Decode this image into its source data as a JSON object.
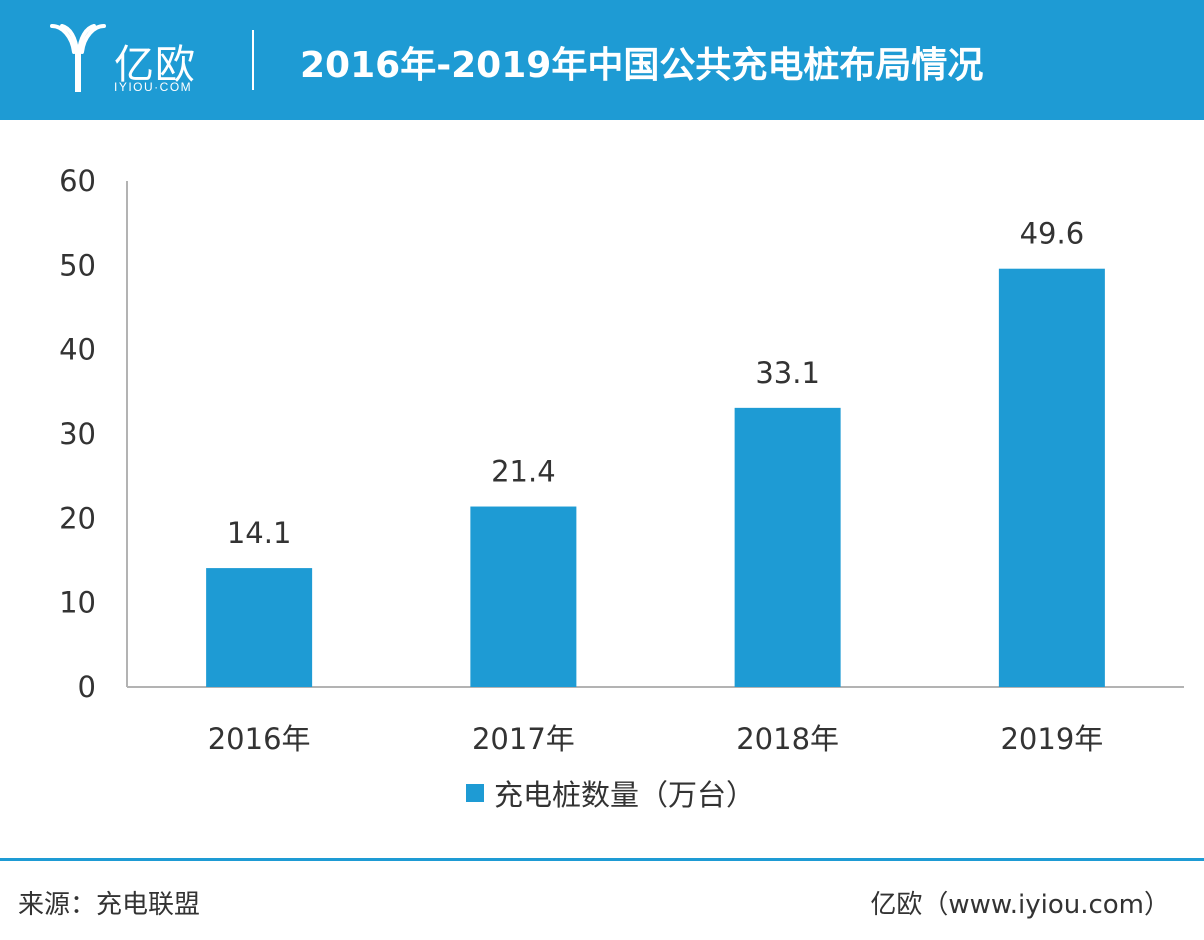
{
  "header": {
    "logo_cn": "亿欧",
    "logo_en": "IYIOU·COM",
    "title": "2016年-2019年中国公共充电桩布局情况"
  },
  "colors": {
    "accent": "#1e9bd4",
    "axis": "#b3b3b3",
    "text": "#333333"
  },
  "chart_data": {
    "type": "bar",
    "title": "",
    "xlabel": "",
    "ylabel": "",
    "categories": [
      "2016年",
      "2017年",
      "2018年",
      "2019年"
    ],
    "series": [
      {
        "name": "充电桩数量（万台）",
        "values": [
          14.1,
          21.4,
          33.1,
          49.6
        ]
      }
    ],
    "ylim": [
      0,
      60
    ],
    "yticks": [
      0,
      10,
      20,
      30,
      40,
      50,
      60
    ],
    "grid": false,
    "legend_position": "bottom",
    "data_labels": [
      "14.1",
      "21.4",
      "33.1",
      "49.6"
    ]
  },
  "footer": {
    "source": "来源：充电联盟",
    "credit": "亿欧（www.iyiou.com）"
  }
}
